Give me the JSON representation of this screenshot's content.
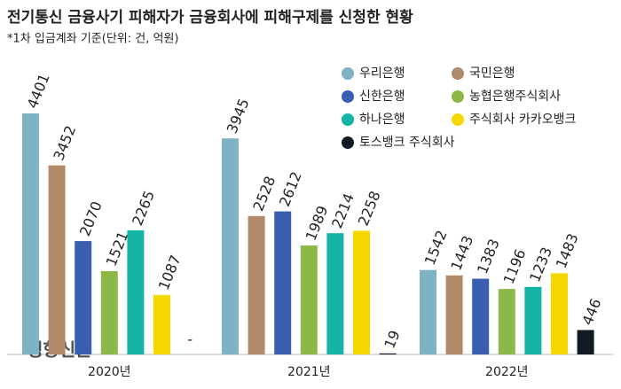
{
  "chart_data": {
    "type": "bar",
    "title": "전기통신 금융사기 피해자가 금융회사에 피해구제를 신청한 현황",
    "subtitle": "*1차 입금계좌 기준(단위: 건, 억원)",
    "watermark": "경향신문",
    "categories": [
      "2020년",
      "2021년",
      "2022년"
    ],
    "series": [
      {
        "name": "우리은행",
        "color": "#7fb2c4",
        "values": [
          4401,
          3945,
          1542
        ]
      },
      {
        "name": "국민은행",
        "color": "#b08a6a",
        "values": [
          3452,
          2528,
          1443
        ]
      },
      {
        "name": "신한은행",
        "color": "#3a5fb0",
        "values": [
          2070,
          2612,
          1383
        ]
      },
      {
        "name": "농협은행주식회사",
        "color": "#8db847",
        "values": [
          1521,
          1989,
          1196
        ]
      },
      {
        "name": "하나은행",
        "color": "#14b5a6",
        "values": [
          2265,
          2214,
          1233
        ]
      },
      {
        "name": "주식회사 카카오뱅크",
        "color": "#f5d800",
        "values": [
          1087,
          2258,
          1483
        ]
      },
      {
        "name": "토스뱅크 주식회사",
        "color": "#111a24",
        "values": [
          null,
          19,
          446
        ],
        "value_labels": [
          "-",
          "19",
          "446"
        ]
      }
    ]
  }
}
